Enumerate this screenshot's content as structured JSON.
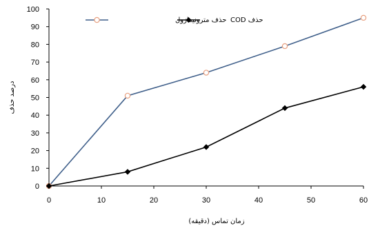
{
  "chart_data": {
    "type": "line",
    "xlabel": "زمان تماس (دقیقه)",
    "ylabel": "درصد حذف",
    "x_ticks": [
      0,
      10,
      20,
      30,
      40,
      50,
      60
    ],
    "y_ticks": [
      0,
      10,
      20,
      30,
      40,
      50,
      60,
      70,
      80,
      90,
      100
    ],
    "xlim": [
      0,
      60
    ],
    "ylim": [
      0,
      100
    ],
    "grid": false,
    "legend_position": "top",
    "series": [
      {
        "name": "حذف مترونیدازول",
        "color": "#3F5F8A",
        "marker": "circle-open",
        "marker_color": "#E8A080",
        "x": [
          0,
          15,
          30,
          45,
          60
        ],
        "y": [
          0,
          51,
          64,
          79,
          95
        ]
      },
      {
        "name": "حذف COD",
        "color": "#000000",
        "marker": "diamond",
        "marker_color": "#000000",
        "x": [
          0,
          15,
          30,
          45,
          60
        ],
        "y": [
          0,
          8,
          22,
          44,
          56
        ]
      }
    ]
  }
}
